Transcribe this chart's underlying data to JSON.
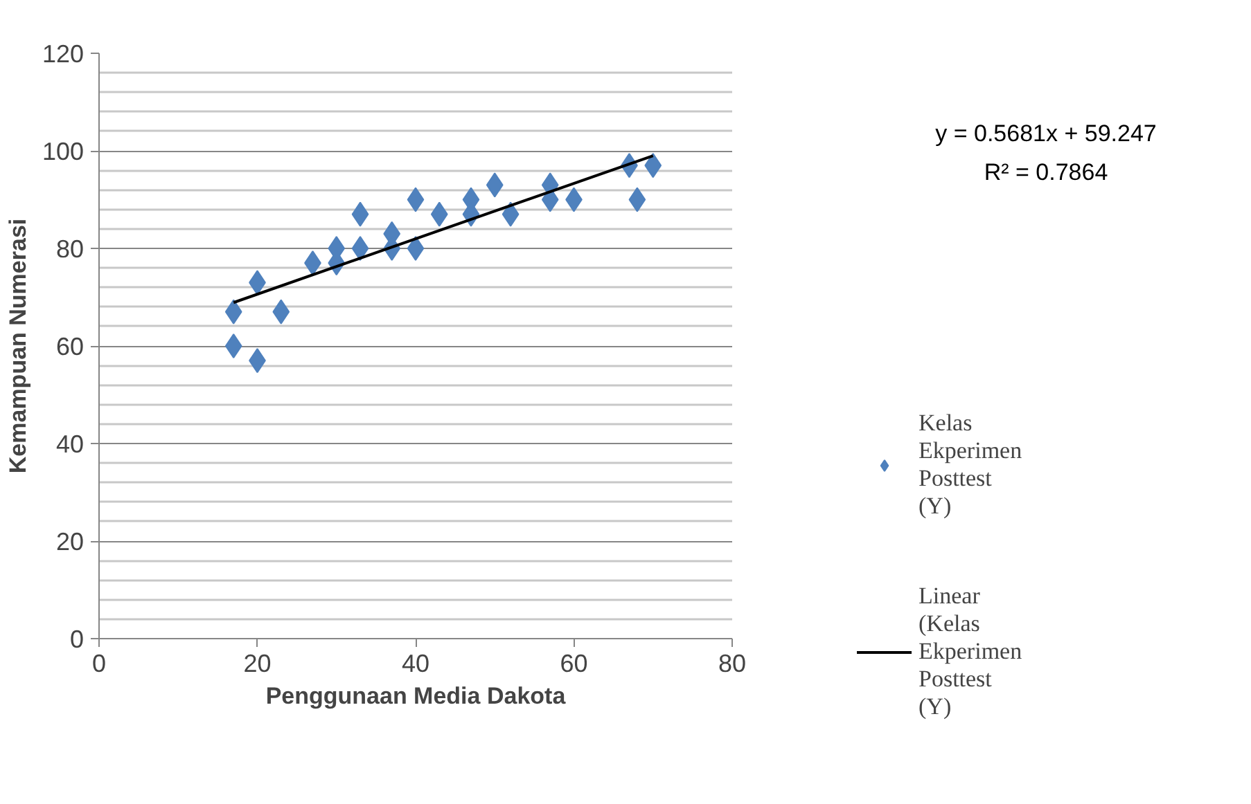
{
  "chart_data": {
    "type": "scatter",
    "xlabel": "Penggunaan Media Dakota",
    "ylabel": "Kemampuan Numerasi",
    "xlim": [
      0,
      80
    ],
    "xticks": [
      0,
      20,
      40,
      60,
      80
    ],
    "ylim": [
      0,
      120
    ],
    "yticks": [
      0,
      20,
      40,
      60,
      80,
      100,
      120
    ],
    "grid": "y",
    "legend": "right",
    "annotations": [
      "y = 0.5681x + 59.247",
      "R² = 0.7864"
    ],
    "series": [
      {
        "name": "Kelas Ekperimen Posttest (Y)",
        "marker": "diamond",
        "color": "#4f81bd",
        "x": [
          17,
          17,
          20,
          20,
          23,
          27,
          30,
          30,
          33,
          33,
          37,
          37,
          40,
          40,
          43,
          47,
          47,
          50,
          52,
          57,
          57,
          60,
          67,
          68,
          70
        ],
        "values": [
          67,
          60,
          73,
          57,
          67,
          77,
          80,
          77,
          87,
          80,
          83,
          80,
          90,
          80,
          87,
          90,
          87,
          93,
          87,
          93,
          90,
          90,
          97,
          90,
          97
        ]
      },
      {
        "name": "Linear (Kelas Ekperimen Posttest (Y)",
        "type": "line",
        "color": "#000000",
        "x": [
          17,
          70
        ],
        "values": [
          68.9,
          99.0
        ]
      }
    ]
  }
}
